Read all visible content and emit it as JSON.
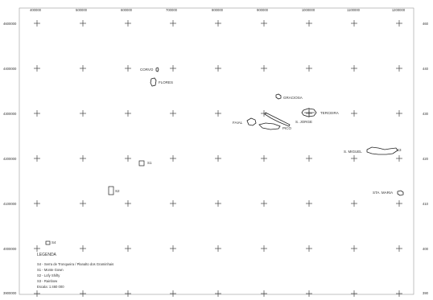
{
  "top_axis_labels": [
    "400000",
    "500000",
    "600000",
    "700000",
    "800000",
    "900000",
    "1000000",
    "1100000",
    "1200000"
  ],
  "left_axis_labels": [
    "4600000",
    "4400000",
    "4300000",
    "4200000",
    "4100000",
    "4000000",
    "3900000"
  ],
  "right_axis_labels": [
    "460",
    "440",
    "430",
    "420",
    "410",
    "400",
    "390"
  ],
  "islands": {
    "corvo": "CORVO",
    "flores": "FLORES",
    "graciosa": "GRACIOSA",
    "faial": "FAIAL",
    "pico": "PICO",
    "sao_jorge": "S. JORGE",
    "terceira": "TERCEIRA",
    "sao_miguel": "S. MIGUEL",
    "santa_maria": "STA. MARIA"
  },
  "site_markers": {
    "s1": "S1",
    "s2": "S2",
    "s4": "S4",
    "s3": "S3"
  },
  "legend": {
    "title": "LEGENDA",
    "items": [
      "S4 - Serra de Tronqueira / Planalto dos Graminhais",
      "S1 - Monte Gown",
      "S2 - Lofy Shifty",
      "S3 - Rainbow"
    ],
    "scale": "Escala: 1:460 000"
  },
  "colors": {
    "line": "#222222",
    "grid_cross": "#444444",
    "text": "#333333"
  }
}
